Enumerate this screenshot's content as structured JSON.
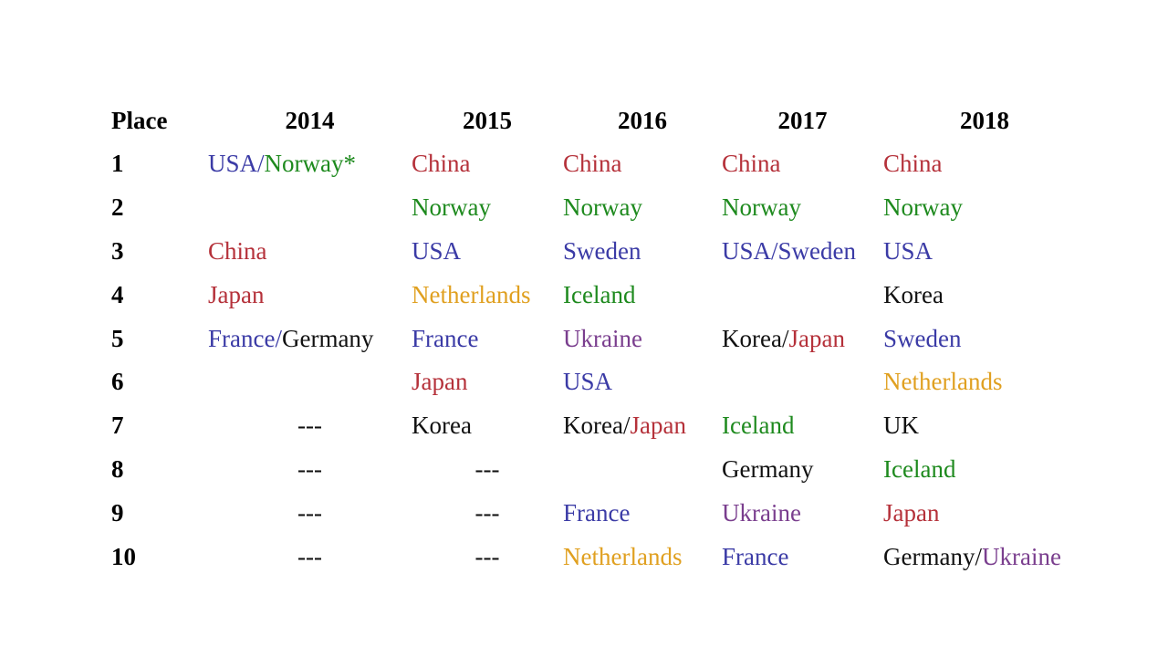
{
  "colors": {
    "red": "#b5313a",
    "green": "#1e8a1e",
    "blue": "#3b3ba6",
    "orange": "#e0a020",
    "purple": "#7a3e8e",
    "black": "#111111"
  },
  "table": {
    "headers": [
      "Place",
      "2014",
      "2015",
      "2016",
      "2017",
      "2018"
    ],
    "rows": [
      {
        "place": "1",
        "cells": [
          {
            "parts": [
              {
                "text": "USA/",
                "color": "blue"
              },
              {
                "text": "Norway*",
                "color": "green"
              }
            ]
          },
          {
            "parts": [
              {
                "text": "China",
                "color": "red"
              }
            ]
          },
          {
            "parts": [
              {
                "text": "China",
                "color": "red"
              }
            ]
          },
          {
            "parts": [
              {
                "text": "China",
                "color": "red"
              }
            ]
          },
          {
            "parts": [
              {
                "text": "China",
                "color": "red"
              }
            ]
          }
        ]
      },
      {
        "place": "2",
        "cells": [
          {
            "parts": []
          },
          {
            "parts": [
              {
                "text": "Norway",
                "color": "green"
              }
            ]
          },
          {
            "parts": [
              {
                "text": "Norway",
                "color": "green"
              }
            ]
          },
          {
            "parts": [
              {
                "text": "Norway",
                "color": "green"
              }
            ]
          },
          {
            "parts": [
              {
                "text": "Norway",
                "color": "green"
              }
            ]
          }
        ]
      },
      {
        "place": "3",
        "cells": [
          {
            "parts": [
              {
                "text": "China",
                "color": "red"
              }
            ]
          },
          {
            "parts": [
              {
                "text": "USA",
                "color": "blue"
              }
            ]
          },
          {
            "parts": [
              {
                "text": "Sweden",
                "color": "blue"
              }
            ]
          },
          {
            "parts": [
              {
                "text": "USA/Sweden",
                "color": "blue"
              }
            ]
          },
          {
            "parts": [
              {
                "text": "USA",
                "color": "blue"
              }
            ]
          }
        ]
      },
      {
        "place": "4",
        "cells": [
          {
            "parts": [
              {
                "text": "Japan",
                "color": "red"
              }
            ]
          },
          {
            "parts": [
              {
                "text": "Netherlands",
                "color": "orange"
              }
            ]
          },
          {
            "parts": [
              {
                "text": "Iceland",
                "color": "green"
              }
            ]
          },
          {
            "parts": []
          },
          {
            "parts": [
              {
                "text": "Korea",
                "color": "black"
              }
            ]
          }
        ]
      },
      {
        "place": "5",
        "cells": [
          {
            "parts": [
              {
                "text": "France/",
                "color": "blue"
              },
              {
                "text": "Germany",
                "color": "black"
              }
            ]
          },
          {
            "parts": [
              {
                "text": "France",
                "color": "blue"
              }
            ]
          },
          {
            "parts": [
              {
                "text": "Ukraine",
                "color": "purple"
              }
            ]
          },
          {
            "parts": [
              {
                "text": "Korea/",
                "color": "black"
              },
              {
                "text": "Japan",
                "color": "red"
              }
            ]
          },
          {
            "parts": [
              {
                "text": "Sweden",
                "color": "blue"
              }
            ]
          }
        ]
      },
      {
        "place": "6",
        "cells": [
          {
            "parts": []
          },
          {
            "parts": [
              {
                "text": "Japan",
                "color": "red"
              }
            ]
          },
          {
            "parts": [
              {
                "text": "USA",
                "color": "blue"
              }
            ]
          },
          {
            "parts": []
          },
          {
            "parts": [
              {
                "text": "Netherlands",
                "color": "orange"
              }
            ]
          }
        ]
      },
      {
        "place": "7",
        "cells": [
          {
            "parts": [
              {
                "text": "---",
                "color": "black"
              }
            ],
            "center": true
          },
          {
            "parts": [
              {
                "text": "Korea",
                "color": "black"
              }
            ]
          },
          {
            "parts": [
              {
                "text": "Korea/",
                "color": "black"
              },
              {
                "text": "Japan",
                "color": "red"
              }
            ]
          },
          {
            "parts": [
              {
                "text": "Iceland",
                "color": "green"
              }
            ]
          },
          {
            "parts": [
              {
                "text": "UK",
                "color": "black"
              }
            ]
          }
        ]
      },
      {
        "place": "8",
        "cells": [
          {
            "parts": [
              {
                "text": "---",
                "color": "black"
              }
            ],
            "center": true
          },
          {
            "parts": [
              {
                "text": "---",
                "color": "black"
              }
            ],
            "center": true
          },
          {
            "parts": []
          },
          {
            "parts": [
              {
                "text": "Germany",
                "color": "black"
              }
            ]
          },
          {
            "parts": [
              {
                "text": "Iceland",
                "color": "green"
              }
            ]
          }
        ]
      },
      {
        "place": "9",
        "cells": [
          {
            "parts": [
              {
                "text": "---",
                "color": "black"
              }
            ],
            "center": true
          },
          {
            "parts": [
              {
                "text": "---",
                "color": "black"
              }
            ],
            "center": true
          },
          {
            "parts": [
              {
                "text": "France",
                "color": "blue"
              }
            ]
          },
          {
            "parts": [
              {
                "text": "Ukraine",
                "color": "purple"
              }
            ]
          },
          {
            "parts": [
              {
                "text": "Japan",
                "color": "red"
              }
            ]
          }
        ]
      },
      {
        "place": "10",
        "cells": [
          {
            "parts": [
              {
                "text": "---",
                "color": "black"
              }
            ],
            "center": true
          },
          {
            "parts": [
              {
                "text": "---",
                "color": "black"
              }
            ],
            "center": true
          },
          {
            "parts": [
              {
                "text": "Netherlands",
                "color": "orange"
              }
            ]
          },
          {
            "parts": [
              {
                "text": "France",
                "color": "blue"
              }
            ]
          },
          {
            "parts": [
              {
                "text": "Germany/",
                "color": "black"
              },
              {
                "text": "Ukraine",
                "color": "purple"
              }
            ]
          }
        ]
      }
    ]
  }
}
